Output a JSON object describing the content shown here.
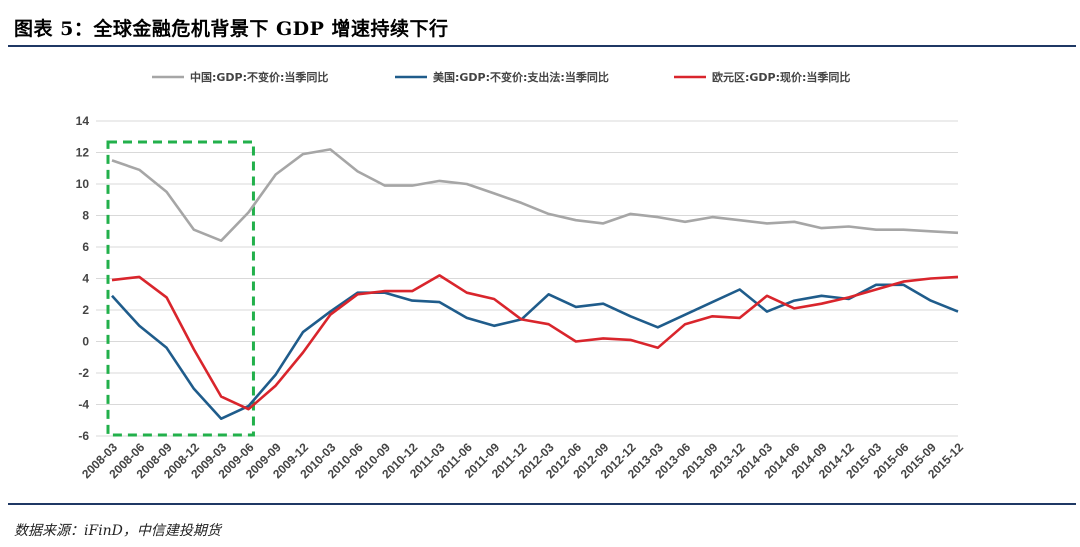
{
  "title": "图表 5：全球金融危机背景下 GDP 增速持续下行",
  "source": "数据来源：iFinD，中信建投期货",
  "colors": {
    "china": "#a6a6a6",
    "usa": "#1f5c8b",
    "euro": "#d9252c",
    "highlight": "#22b04b",
    "rule": "#1f3864",
    "gridline": "#d9d9d9"
  },
  "chart_data": {
    "type": "line",
    "categories": [
      "2008-03",
      "2008-06",
      "2008-09",
      "2008-12",
      "2009-03",
      "2009-06",
      "2009-09",
      "2009-12",
      "2010-03",
      "2010-06",
      "2010-09",
      "2010-12",
      "2011-03",
      "2011-06",
      "2011-09",
      "2011-12",
      "2012-03",
      "2012-06",
      "2012-09",
      "2012-12",
      "2013-03",
      "2013-06",
      "2013-09",
      "2013-12",
      "2014-03",
      "2014-06",
      "2014-09",
      "2014-12",
      "2015-03",
      "2015-06",
      "2015-09",
      "2015-12"
    ],
    "series": [
      {
        "name": "中国:GDP:不变价:当季同比",
        "color_key": "china",
        "values": [
          11.5,
          10.9,
          9.5,
          7.1,
          6.4,
          8.2,
          10.6,
          11.9,
          12.2,
          10.8,
          9.9,
          9.9,
          10.2,
          10.0,
          9.4,
          8.8,
          8.1,
          7.7,
          7.5,
          8.1,
          7.9,
          7.6,
          7.9,
          7.7,
          7.5,
          7.6,
          7.2,
          7.3,
          7.1,
          7.1,
          7.0,
          6.9
        ]
      },
      {
        "name": "美国:GDP:不变价:支出法:当季同比",
        "color_key": "usa",
        "values": [
          2.9,
          1.0,
          -0.4,
          -3.0,
          -4.9,
          -4.1,
          -2.1,
          0.6,
          1.9,
          3.1,
          3.1,
          2.6,
          2.5,
          1.5,
          1.0,
          1.4,
          3.0,
          2.2,
          2.4,
          1.6,
          0.9,
          1.7,
          2.5,
          3.3,
          1.9,
          2.6,
          2.9,
          2.7,
          3.6,
          3.6,
          2.6,
          1.9
        ]
      },
      {
        "name": "欧元区:GDP:现价:当季同比",
        "color_key": "euro",
        "values": [
          3.9,
          4.1,
          2.8,
          -0.5,
          -3.5,
          -4.3,
          -2.8,
          -0.7,
          1.7,
          3.0,
          3.2,
          3.2,
          4.2,
          3.1,
          2.7,
          1.4,
          1.1,
          0.0,
          0.2,
          0.1,
          -0.4,
          1.1,
          1.6,
          1.5,
          2.9,
          2.1,
          2.4,
          2.8,
          3.3,
          3.8,
          4.0,
          4.1
        ]
      }
    ],
    "xlabel": "",
    "ylabel": "",
    "ylim": [
      -6,
      14
    ],
    "yticks": [
      14,
      12,
      10,
      8,
      6,
      4,
      2,
      0,
      -2,
      -4,
      -6
    ],
    "grid": true,
    "legend_position": "top",
    "highlight_range": [
      "2008-03",
      "2009-06"
    ]
  }
}
